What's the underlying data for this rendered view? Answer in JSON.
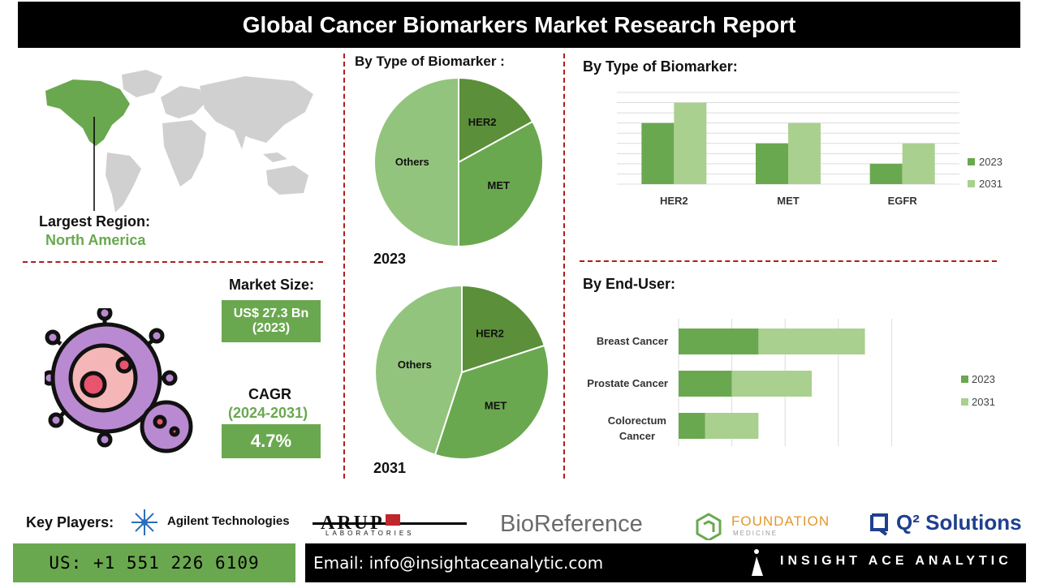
{
  "header": {
    "title": "Global Cancer Biomarkers Market Research Report"
  },
  "region": {
    "label": "Largest Region:",
    "value": "North America"
  },
  "market_size": {
    "label": "Market Size:",
    "value_line1": "US$ 27.3 Bn",
    "value_line2": "(2023)"
  },
  "cagr": {
    "label": "CAGR",
    "period": "(2024-2031)",
    "value": "4.7%"
  },
  "pie_section": {
    "heading": "By Type of Biomarker :"
  },
  "bar_section": {
    "heading": "By Type of Biomarker:"
  },
  "hbar_section": {
    "heading": "By End-User:"
  },
  "key_players": {
    "label": "Key Players:",
    "agilent": "Agilent Technologies",
    "arup_main": "ARUP",
    "arup_sub": "LABORATORIES",
    "bioreference": "BioReference",
    "foundation_main": "FOUNDATION",
    "foundation_sub": "MEDICINE",
    "q2": "Q² Solutions"
  },
  "footer": {
    "phone": "US: +1 551 226 6109",
    "email": "Email: info@insightaceanalytic.com",
    "brand": "INSIGHT ACE ANALYTIC"
  },
  "colors": {
    "dark_green": "#5b8f3a",
    "mid_green": "#6aa84f",
    "light_green": "#93c47d",
    "pale_green": "#a9d08e",
    "accent_dash": "#b01c1c"
  },
  "chart_data": [
    {
      "type": "pie",
      "year_label": "2023",
      "slices": [
        {
          "label": "HER2",
          "value": 17
        },
        {
          "label": "MET",
          "value": 33
        },
        {
          "label": "Others",
          "value": 50
        }
      ]
    },
    {
      "type": "pie",
      "year_label": "2031",
      "slices": [
        {
          "label": "HER2",
          "value": 20
        },
        {
          "label": "MET",
          "value": 35
        },
        {
          "label": "Others",
          "value": 45
        }
      ]
    },
    {
      "type": "bar",
      "categories": [
        "HER2",
        "MET",
        "EGFR"
      ],
      "series": [
        {
          "name": "2023",
          "values": [
            3,
            2,
            1
          ]
        },
        {
          "name": "2031",
          "values": [
            4,
            3,
            2
          ]
        }
      ],
      "ylim": [
        0,
        4.5
      ],
      "grid": true,
      "legend": "right"
    },
    {
      "type": "bar",
      "orientation": "horizontal",
      "stacked": true,
      "categories": [
        "Breast Cancer",
        "Prostate Cancer",
        "Colorectum Cancer"
      ],
      "series": [
        {
          "name": "2023",
          "values": [
            3,
            2,
            1
          ]
        },
        {
          "name": "2031",
          "values": [
            4,
            3,
            2
          ]
        }
      ],
      "xlim": [
        0,
        8
      ],
      "grid": true,
      "legend": "right"
    }
  ]
}
